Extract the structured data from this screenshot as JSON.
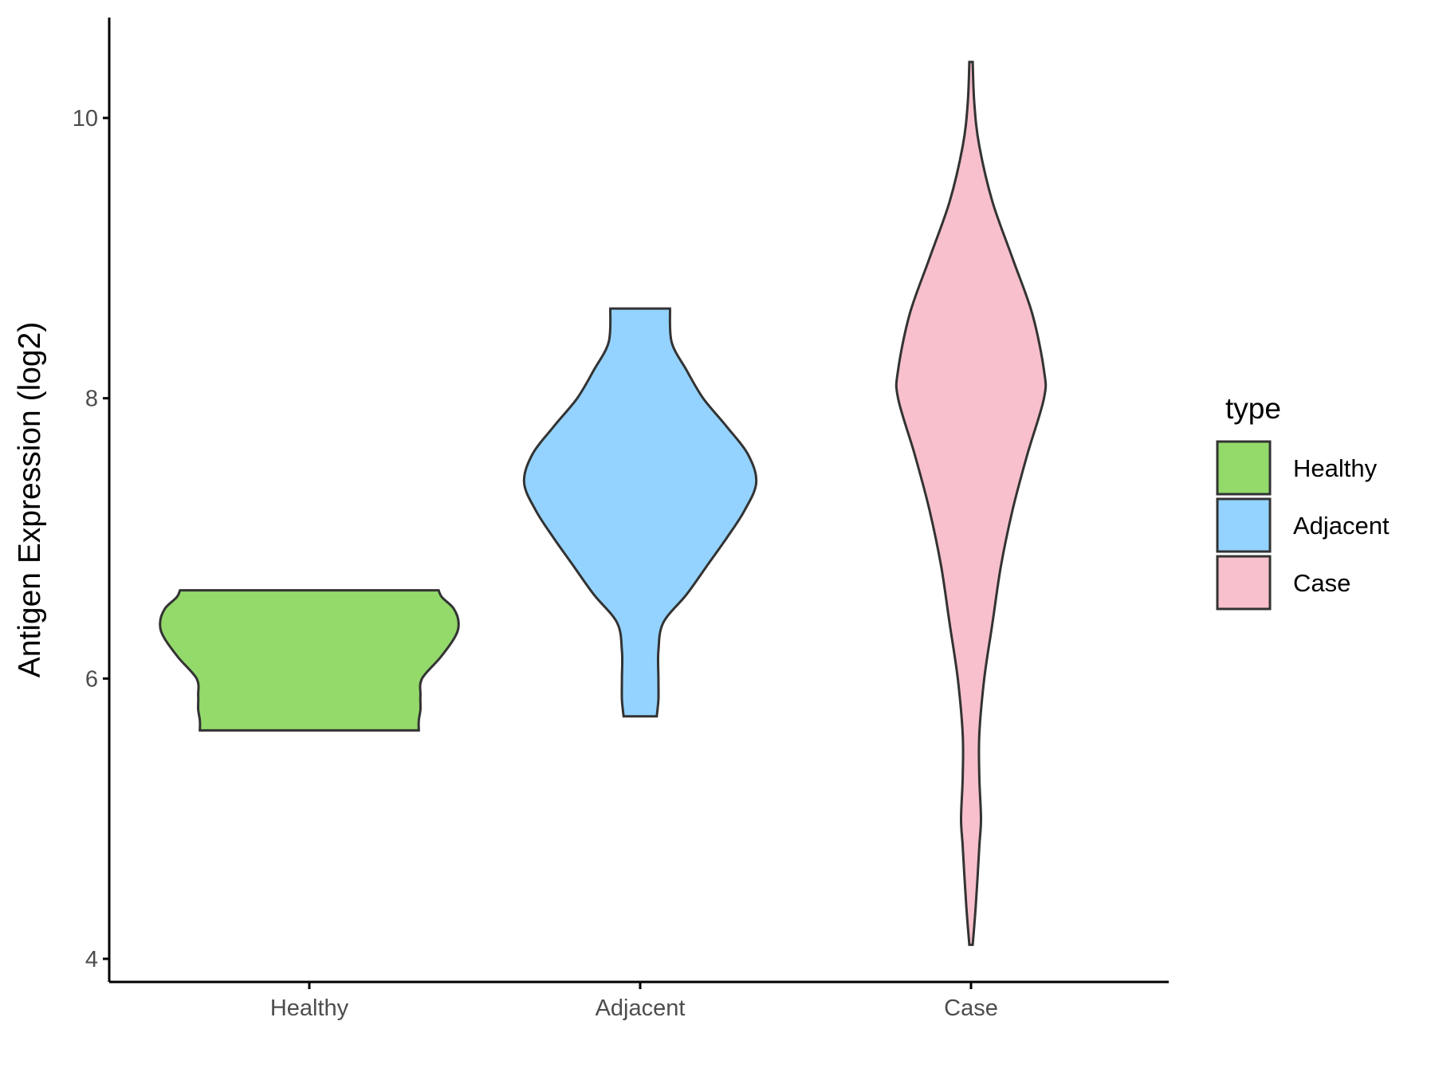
{
  "chart_data": {
    "type": "violin",
    "ylabel": "Antigen Expression (log2)",
    "xlabel": "",
    "ylim": [
      3.8,
      10.7
    ],
    "y_ticks": [
      4,
      6,
      8,
      10
    ],
    "categories": [
      "Healthy",
      "Adjacent",
      "Case"
    ],
    "legend": {
      "title": "type",
      "position": "right",
      "entries": [
        "Healthy",
        "Adjacent",
        "Case"
      ]
    },
    "colors": {
      "Healthy": "#93da6b",
      "Adjacent": "#94d3ff",
      "Case": "#f7c0cc"
    },
    "series": [
      {
        "name": "Healthy",
        "min": 5.63,
        "max": 6.63,
        "density_profile": [
          [
            5.63,
            0.66
          ],
          [
            5.7,
            0.66
          ],
          [
            5.78,
            0.67
          ],
          [
            5.88,
            0.67
          ],
          [
            6.0,
            0.68
          ],
          [
            6.15,
            0.79
          ],
          [
            6.3,
            0.88
          ],
          [
            6.4,
            0.9
          ],
          [
            6.5,
            0.87
          ],
          [
            6.58,
            0.8
          ],
          [
            6.63,
            0.78
          ]
        ]
      },
      {
        "name": "Adjacent",
        "min": 5.73,
        "max": 8.64,
        "density_profile": [
          [
            5.73,
            0.1
          ],
          [
            5.85,
            0.11
          ],
          [
            6.0,
            0.11
          ],
          [
            6.2,
            0.11
          ],
          [
            6.4,
            0.14
          ],
          [
            6.6,
            0.28
          ],
          [
            6.8,
            0.4
          ],
          [
            7.0,
            0.52
          ],
          [
            7.2,
            0.63
          ],
          [
            7.4,
            0.7
          ],
          [
            7.6,
            0.65
          ],
          [
            7.8,
            0.52
          ],
          [
            8.0,
            0.38
          ],
          [
            8.2,
            0.28
          ],
          [
            8.4,
            0.19
          ],
          [
            8.64,
            0.18
          ]
        ]
      },
      {
        "name": "Case",
        "min": 4.1,
        "max": 10.4,
        "density_profile": [
          [
            4.1,
            0.01
          ],
          [
            4.4,
            0.03
          ],
          [
            4.8,
            0.05
          ],
          [
            5.0,
            0.06
          ],
          [
            5.3,
            0.05
          ],
          [
            5.6,
            0.05
          ],
          [
            6.0,
            0.08
          ],
          [
            6.4,
            0.13
          ],
          [
            6.8,
            0.18
          ],
          [
            7.2,
            0.25
          ],
          [
            7.6,
            0.34
          ],
          [
            8.0,
            0.44
          ],
          [
            8.2,
            0.44
          ],
          [
            8.6,
            0.37
          ],
          [
            9.0,
            0.25
          ],
          [
            9.4,
            0.13
          ],
          [
            9.8,
            0.05
          ],
          [
            10.1,
            0.02
          ],
          [
            10.4,
            0.01
          ]
        ]
      }
    ]
  }
}
